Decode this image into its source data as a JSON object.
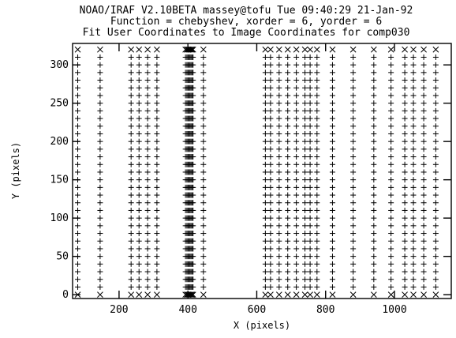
{
  "chart_data": {
    "type": "scatter",
    "title_lines": [
      "NOAO/IRAF V2.10BETA massey@tofu Tue 09:40:29 21-Jan-92",
      "Function = chebyshev, xorder = 6, yorder = 6",
      "Fit User Coordinates to Image Coordinates for comp030"
    ],
    "xlabel": "X (pixels)",
    "ylabel": "Y (pixels)",
    "xlim": [
      65,
      1165
    ],
    "ylim": [
      -5,
      328
    ],
    "xticks": [
      200,
      400,
      600,
      800,
      1000
    ],
    "yticks": [
      0,
      50,
      100,
      150,
      200,
      250,
      300
    ],
    "grid": false,
    "columns_x": [
      80,
      145,
      235,
      258,
      283,
      310,
      393,
      397,
      400,
      403,
      406,
      409,
      412,
      415,
      445,
      625,
      640,
      665,
      690,
      715,
      740,
      755,
      775,
      820,
      880,
      940,
      990,
      1030,
      1055,
      1085,
      1120
    ],
    "rows_y": [
      0,
      10,
      20,
      30,
      40,
      50,
      60,
      70,
      80,
      90,
      100,
      110,
      120,
      130,
      140,
      150,
      160,
      170,
      180,
      190,
      200,
      210,
      220,
      230,
      240,
      250,
      260,
      270,
      280,
      290,
      300,
      310,
      320
    ],
    "rejected_rows_y": [
      0,
      320
    ],
    "markers": {
      "plus": "fitted point",
      "x": "rejected point"
    }
  }
}
